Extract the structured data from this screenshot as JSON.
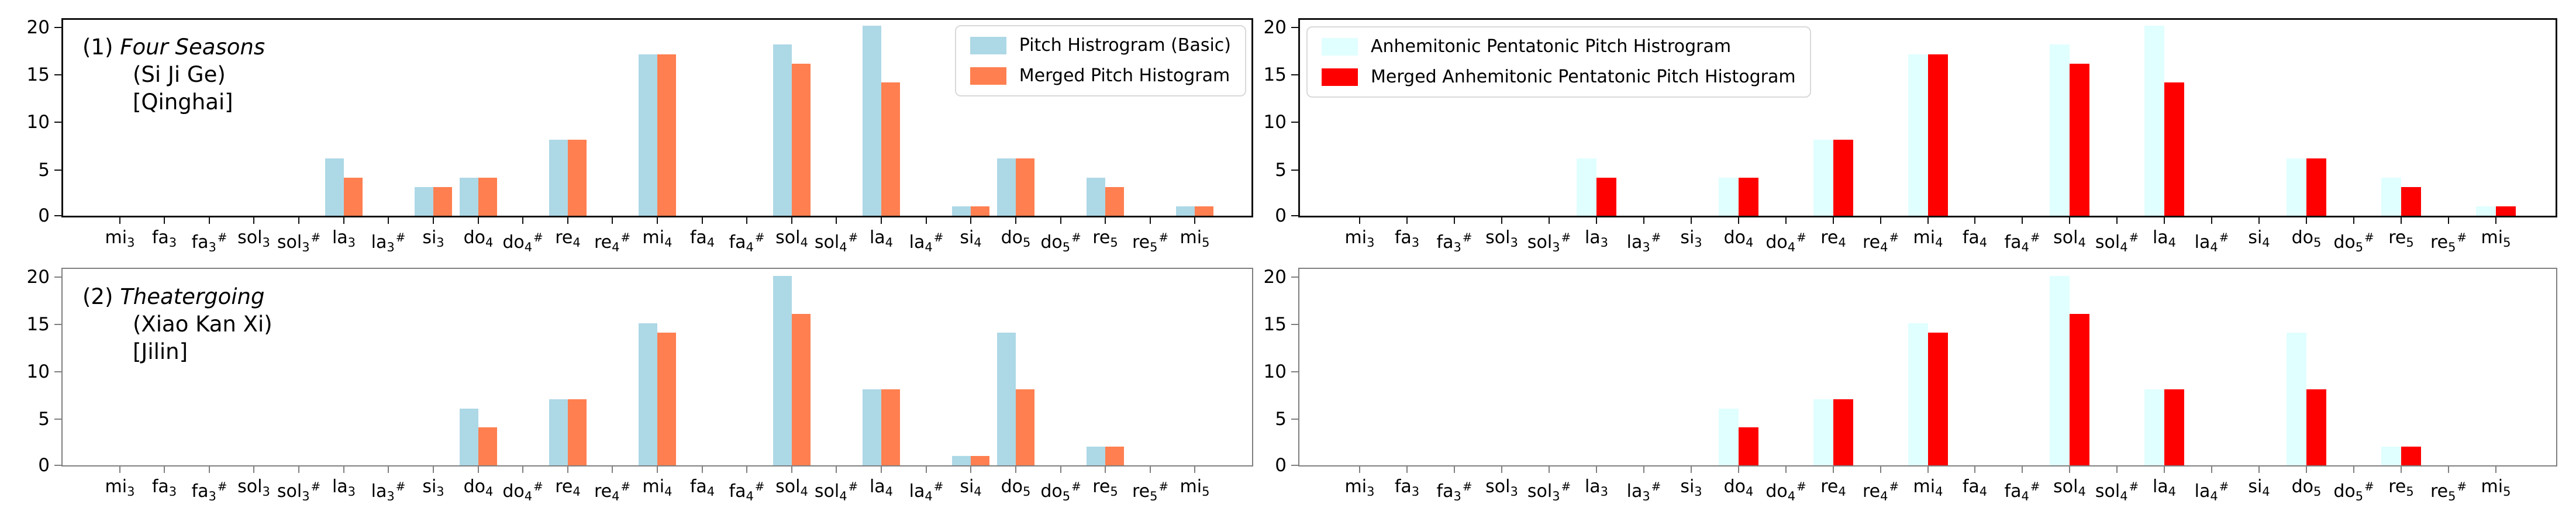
{
  "figure": {
    "background": "#ffffff",
    "spine_color_top_row": "#111111",
    "spine_color_bottom_row": "#7f7f7f"
  },
  "axes": {
    "yticks": [
      0,
      5,
      10,
      15,
      20
    ],
    "ylim": [
      0,
      21
    ],
    "categories": [
      "mi3",
      "fa3",
      "fa3#",
      "sol3",
      "sol3#",
      "la3",
      "la3#",
      "si3",
      "do4",
      "do4#",
      "re4",
      "re4#",
      "mi4",
      "fa4",
      "fa4#",
      "sol4",
      "sol4#",
      "la4",
      "la4#",
      "si4",
      "do5",
      "do5#",
      "re5",
      "re5#",
      "mi5"
    ]
  },
  "colors": {
    "basic_blue": "#ADD8E6",
    "merged_coral": "#FF7F50",
    "pentatonic_cyan": "#E0FFFF",
    "pentatonic_merged_red": "#FF0000"
  },
  "chart_data": [
    {
      "id": "song1-basic-vs-merged",
      "type": "bar",
      "position": "top-left",
      "title": {
        "prefix": "(1)",
        "name": "Four Seasons",
        "line2": "(Si Ji Ge)",
        "line3": "[Qinghai]"
      },
      "legend": {
        "position": "top-right",
        "entries": [
          {
            "label": "Pitch Histrogram (Basic)",
            "color": "#ADD8E6"
          },
          {
            "label": "Merged Pitch Histogram",
            "color": "#FF7F50"
          }
        ]
      },
      "ylim": [
        0,
        21
      ],
      "series": [
        {
          "name": "Pitch Histrogram (Basic)",
          "color": "#ADD8E6",
          "values": [
            0,
            0,
            0,
            0,
            0,
            6,
            0,
            3,
            4,
            0,
            8,
            0,
            17,
            0,
            0,
            18,
            0,
            20,
            0,
            1,
            6,
            0,
            4,
            0,
            1
          ]
        },
        {
          "name": "Merged Pitch Histogram",
          "color": "#FF7F50",
          "values": [
            0,
            0,
            0,
            0,
            0,
            4,
            0,
            3,
            4,
            0,
            8,
            0,
            17,
            0,
            0,
            16,
            0,
            14,
            0,
            1,
            6,
            0,
            3,
            0,
            1
          ]
        }
      ]
    },
    {
      "id": "song1-anhemitonic-pentatonic",
      "type": "bar",
      "position": "top-right",
      "title": null,
      "legend": {
        "position": "top-left",
        "entries": [
          {
            "label": "Anhemitonic Pentatonic Pitch Histrogram",
            "color": "#E0FFFF"
          },
          {
            "label": "Merged Anhemitonic Pentatonic Pitch Histogram",
            "color": "#FF0000"
          }
        ]
      },
      "ylim": [
        0,
        21
      ],
      "series": [
        {
          "name": "Anhemitonic Pentatonic Pitch Histrogram",
          "color": "#E0FFFF",
          "values": [
            0,
            0,
            0,
            0,
            0,
            6,
            0,
            0,
            4,
            0,
            8,
            0,
            17,
            0,
            0,
            18,
            0,
            20,
            0,
            0,
            6,
            0,
            4,
            0,
            1
          ]
        },
        {
          "name": "Merged Anhemitonic Pentatonic Pitch Histogram",
          "color": "#FF0000",
          "values": [
            0,
            0,
            0,
            0,
            0,
            4,
            0,
            0,
            4,
            0,
            8,
            0,
            17,
            0,
            0,
            16,
            0,
            14,
            0,
            0,
            6,
            0,
            3,
            0,
            1
          ]
        }
      ]
    },
    {
      "id": "song2-basic-vs-merged",
      "type": "bar",
      "position": "bottom-left",
      "title": {
        "prefix": "(2)",
        "name": "Theatergoing",
        "line2": "(Xiao Kan Xi)",
        "line3": "[Jilin]"
      },
      "legend": null,
      "ylim": [
        0,
        21
      ],
      "series": [
        {
          "name": "Pitch Histrogram (Basic)",
          "color": "#ADD8E6",
          "values": [
            0,
            0,
            0,
            0,
            0,
            0,
            0,
            0,
            6,
            0,
            7,
            0,
            15,
            0,
            0,
            20,
            0,
            8,
            0,
            1,
            14,
            0,
            2,
            0,
            0
          ]
        },
        {
          "name": "Merged Pitch Histogram",
          "color": "#FF7F50",
          "values": [
            0,
            0,
            0,
            0,
            0,
            0,
            0,
            0,
            4,
            0,
            7,
            0,
            14,
            0,
            0,
            16,
            0,
            8,
            0,
            1,
            8,
            0,
            2,
            0,
            0
          ]
        }
      ]
    },
    {
      "id": "song2-anhemitonic-pentatonic",
      "type": "bar",
      "position": "bottom-right",
      "title": null,
      "legend": null,
      "ylim": [
        0,
        21
      ],
      "series": [
        {
          "name": "Anhemitonic Pentatonic Pitch Histrogram",
          "color": "#E0FFFF",
          "values": [
            0,
            0,
            0,
            0,
            0,
            0,
            0,
            0,
            6,
            0,
            7,
            0,
            15,
            0,
            0,
            20,
            0,
            8,
            0,
            0,
            14,
            0,
            2,
            0,
            0
          ]
        },
        {
          "name": "Merged Anhemitonic Pentatonic Pitch Histogram",
          "color": "#FF0000",
          "values": [
            0,
            0,
            0,
            0,
            0,
            0,
            0,
            0,
            4,
            0,
            7,
            0,
            14,
            0,
            0,
            16,
            0,
            8,
            0,
            0,
            8,
            0,
            2,
            0,
            0
          ]
        }
      ]
    }
  ]
}
